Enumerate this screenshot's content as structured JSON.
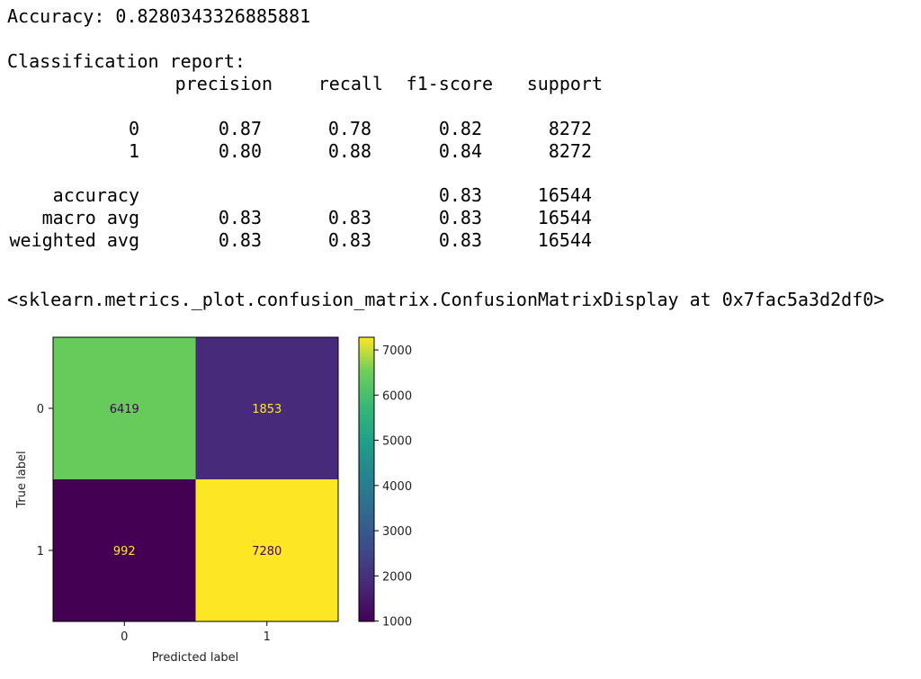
{
  "output": {
    "accuracy_line": "Accuracy: 0.8280343326885881",
    "report_title": "Classification report:",
    "report": {
      "headers": [
        "precision",
        "recall",
        "f1-score",
        "support"
      ],
      "rows": [
        {
          "label": "0",
          "precision": "0.87",
          "recall": "0.78",
          "f1": "0.82",
          "support": "8272"
        },
        {
          "label": "1",
          "precision": "0.80",
          "recall": "0.88",
          "f1": "0.84",
          "support": "8272"
        }
      ],
      "summary": [
        {
          "label": "accuracy",
          "precision": "",
          "recall": "",
          "f1": "0.83",
          "support": "16544"
        },
        {
          "label": "macro avg",
          "precision": "0.83",
          "recall": "0.83",
          "f1": "0.83",
          "support": "16544"
        },
        {
          "label": "weighted avg",
          "precision": "0.83",
          "recall": "0.83",
          "f1": "0.83",
          "support": "16544"
        }
      ]
    },
    "repr_line": "<sklearn.metrics._plot.confusion_matrix.ConfusionMatrixDisplay at 0x7fac5a3d2df0>"
  },
  "chart_data": {
    "type": "heatmap",
    "x_categories": [
      "0",
      "1"
    ],
    "y_categories": [
      "0",
      "1"
    ],
    "values": [
      [
        6419,
        1853
      ],
      [
        992,
        7280
      ]
    ],
    "xlabel": "Predicted label",
    "ylabel": "True label",
    "colormap": "viridis",
    "colorbar_ticks": [
      "1000",
      "2000",
      "3000",
      "4000",
      "5000",
      "6000",
      "7000"
    ],
    "colorbar_range": [
      992,
      7280
    ],
    "legend": "colorbar-right",
    "grid": false
  }
}
